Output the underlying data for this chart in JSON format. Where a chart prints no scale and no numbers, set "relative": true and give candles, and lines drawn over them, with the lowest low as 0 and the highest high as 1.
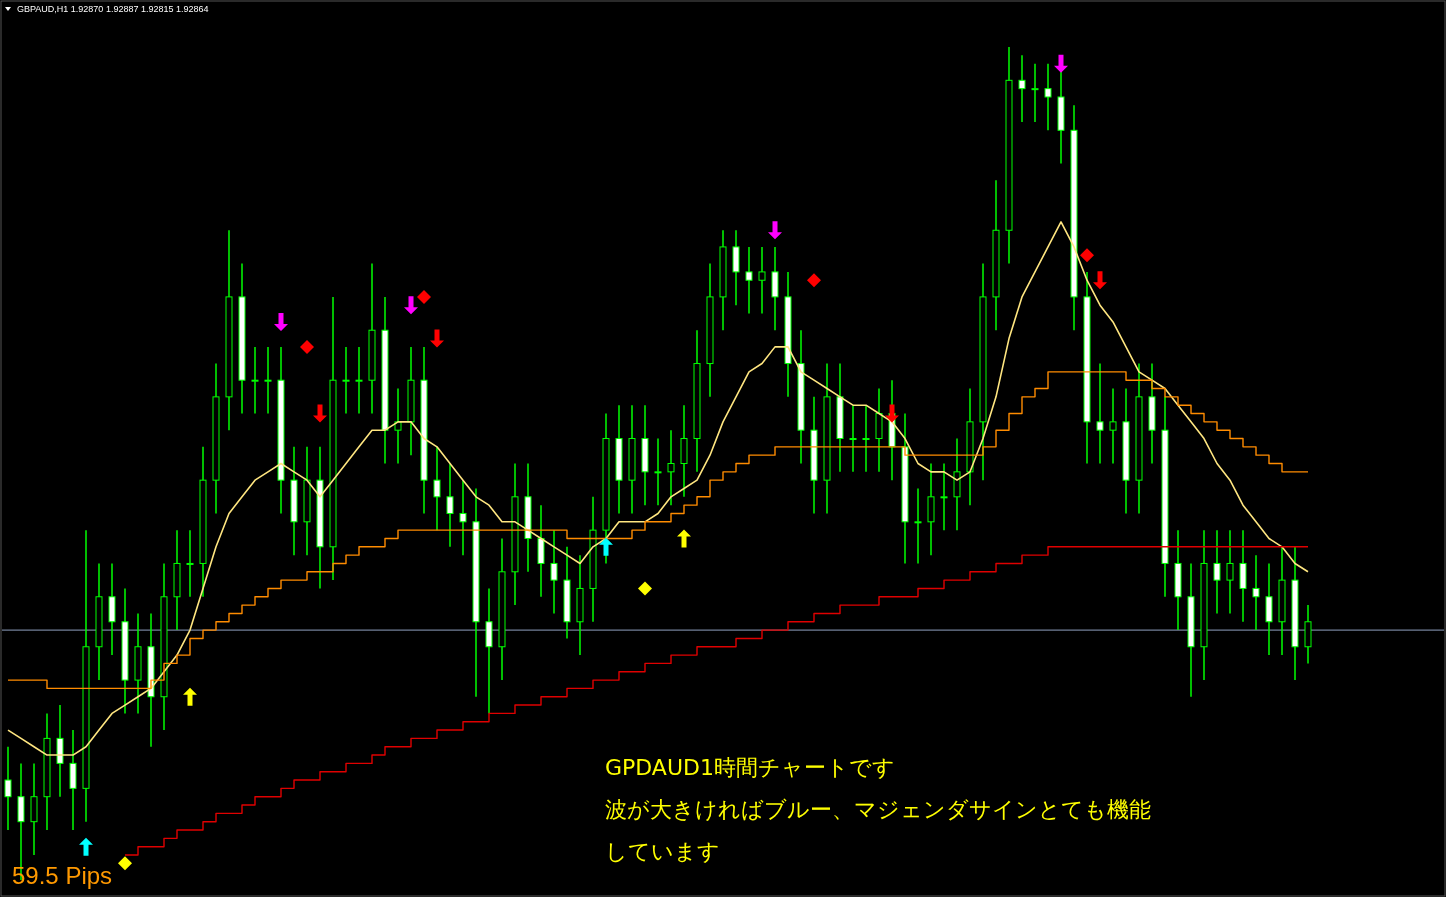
{
  "chart_data": {
    "type": "candlestick",
    "title": "GBPAUD,H1  1.92870 1.92887 1.92815 1.92864",
    "relative": true,
    "categories": [
      null,
      null,
      null,
      null,
      null,
      null,
      null,
      null,
      null,
      null,
      null,
      null,
      null,
      null,
      null,
      null,
      null,
      null,
      null,
      null,
      null,
      null,
      null,
      null,
      null,
      null,
      null,
      null,
      null,
      null,
      null,
      null,
      null,
      null,
      null,
      null,
      null,
      null,
      null,
      null,
      null,
      null,
      null,
      null,
      null,
      null,
      null,
      null,
      null,
      null,
      null,
      null,
      null,
      null,
      null,
      null,
      null,
      null,
      null,
      null,
      null,
      null,
      null,
      null,
      null,
      null,
      null,
      null,
      null,
      null,
      null,
      null,
      null,
      null,
      null,
      null,
      null,
      null,
      null,
      null,
      null,
      null,
      null,
      null,
      null,
      null,
      null,
      null,
      null,
      null,
      null,
      null,
      null,
      null,
      null,
      null,
      null,
      null,
      null,
      null,
      null
    ],
    "color": "#00ff00",
    "ohlc": [
      [
        0.12,
        0.16,
        0.06,
        0.1
      ],
      [
        0.1,
        0.14,
        0.0,
        0.07
      ],
      [
        0.07,
        0.14,
        0.03,
        0.1
      ],
      [
        0.1,
        0.2,
        0.06,
        0.17
      ],
      [
        0.17,
        0.21,
        0.1,
        0.14
      ],
      [
        0.14,
        0.18,
        0.06,
        0.11
      ],
      [
        0.11,
        0.42,
        0.07,
        0.28
      ],
      [
        0.28,
        0.38,
        0.24,
        0.34
      ],
      [
        0.34,
        0.38,
        0.27,
        0.31
      ],
      [
        0.31,
        0.35,
        0.2,
        0.24
      ],
      [
        0.24,
        0.32,
        0.2,
        0.28
      ],
      [
        0.28,
        0.32,
        0.16,
        0.22
      ],
      [
        0.22,
        0.38,
        0.18,
        0.34
      ],
      [
        0.34,
        0.42,
        0.3,
        0.38
      ],
      [
        0.38,
        0.42,
        0.34,
        0.38
      ],
      [
        0.38,
        0.52,
        0.34,
        0.48
      ],
      [
        0.48,
        0.62,
        0.44,
        0.58
      ],
      [
        0.58,
        0.78,
        0.54,
        0.7
      ],
      [
        0.7,
        0.74,
        0.56,
        0.6
      ],
      [
        0.6,
        0.64,
        0.56,
        0.6
      ],
      [
        0.6,
        0.64,
        0.56,
        0.6
      ],
      [
        0.6,
        0.64,
        0.44,
        0.48
      ],
      [
        0.48,
        0.52,
        0.39,
        0.43
      ],
      [
        0.43,
        0.52,
        0.39,
        0.48
      ],
      [
        0.48,
        0.52,
        0.35,
        0.4
      ],
      [
        0.4,
        0.7,
        0.36,
        0.6
      ],
      [
        0.6,
        0.64,
        0.56,
        0.6
      ],
      [
        0.6,
        0.64,
        0.56,
        0.6
      ],
      [
        0.6,
        0.74,
        0.56,
        0.66
      ],
      [
        0.66,
        0.7,
        0.5,
        0.54
      ],
      [
        0.54,
        0.59,
        0.5,
        0.55
      ],
      [
        0.55,
        0.64,
        0.51,
        0.6
      ],
      [
        0.6,
        0.64,
        0.44,
        0.48
      ],
      [
        0.48,
        0.52,
        0.42,
        0.46
      ],
      [
        0.46,
        0.5,
        0.4,
        0.44
      ],
      [
        0.44,
        0.48,
        0.39,
        0.43
      ],
      [
        0.43,
        0.47,
        0.22,
        0.31
      ],
      [
        0.31,
        0.35,
        0.2,
        0.28
      ],
      [
        0.28,
        0.41,
        0.24,
        0.37
      ],
      [
        0.37,
        0.5,
        0.33,
        0.46
      ],
      [
        0.46,
        0.5,
        0.37,
        0.41
      ],
      [
        0.41,
        0.45,
        0.34,
        0.38
      ],
      [
        0.38,
        0.42,
        0.32,
        0.36
      ],
      [
        0.36,
        0.4,
        0.29,
        0.31
      ],
      [
        0.31,
        0.39,
        0.27,
        0.35
      ],
      [
        0.35,
        0.46,
        0.31,
        0.42
      ],
      [
        0.42,
        0.56,
        0.38,
        0.53
      ],
      [
        0.53,
        0.57,
        0.44,
        0.48
      ],
      [
        0.48,
        0.57,
        0.44,
        0.53
      ],
      [
        0.53,
        0.57,
        0.45,
        0.49
      ],
      [
        0.49,
        0.53,
        0.45,
        0.49
      ],
      [
        0.49,
        0.54,
        0.45,
        0.5
      ],
      [
        0.5,
        0.57,
        0.46,
        0.53
      ],
      [
        0.53,
        0.66,
        0.49,
        0.62
      ],
      [
        0.62,
        0.74,
        0.58,
        0.7
      ],
      [
        0.7,
        0.78,
        0.66,
        0.76
      ],
      [
        0.76,
        0.78,
        0.69,
        0.73
      ],
      [
        0.73,
        0.76,
        0.68,
        0.72
      ],
      [
        0.72,
        0.76,
        0.68,
        0.73
      ],
      [
        0.73,
        0.76,
        0.66,
        0.7
      ],
      [
        0.7,
        0.73,
        0.58,
        0.62
      ],
      [
        0.62,
        0.66,
        0.5,
        0.54
      ],
      [
        0.54,
        0.58,
        0.44,
        0.48
      ],
      [
        0.48,
        0.62,
        0.44,
        0.58
      ],
      [
        0.58,
        0.62,
        0.49,
        0.53
      ],
      [
        0.53,
        0.57,
        0.49,
        0.53
      ],
      [
        0.53,
        0.57,
        0.49,
        0.53
      ],
      [
        0.53,
        0.59,
        0.49,
        0.56
      ],
      [
        0.56,
        0.6,
        0.48,
        0.52
      ],
      [
        0.52,
        0.56,
        0.38,
        0.43
      ],
      [
        0.43,
        0.47,
        0.38,
        0.43
      ],
      [
        0.43,
        0.5,
        0.39,
        0.46
      ],
      [
        0.46,
        0.5,
        0.42,
        0.46
      ],
      [
        0.46,
        0.53,
        0.42,
        0.49
      ],
      [
        0.49,
        0.59,
        0.45,
        0.55
      ],
      [
        0.55,
        0.74,
        0.48,
        0.7
      ],
      [
        0.7,
        0.84,
        0.66,
        0.78
      ],
      [
        0.78,
        1.0,
        0.74,
        0.96
      ],
      [
        0.96,
        0.99,
        0.91,
        0.95
      ],
      [
        0.95,
        0.98,
        0.91,
        0.95
      ],
      [
        0.95,
        0.98,
        0.9,
        0.94
      ],
      [
        0.94,
        0.97,
        0.86,
        0.9
      ],
      [
        0.9,
        0.93,
        0.66,
        0.7
      ],
      [
        0.7,
        0.73,
        0.5,
        0.55
      ],
      [
        0.55,
        0.62,
        0.5,
        0.54
      ],
      [
        0.54,
        0.59,
        0.5,
        0.55
      ],
      [
        0.55,
        0.59,
        0.44,
        0.48
      ],
      [
        0.48,
        0.62,
        0.44,
        0.58
      ],
      [
        0.58,
        0.62,
        0.5,
        0.54
      ],
      [
        0.54,
        0.58,
        0.34,
        0.38
      ],
      [
        0.38,
        0.42,
        0.3,
        0.34
      ],
      [
        0.34,
        0.38,
        0.22,
        0.28
      ],
      [
        0.28,
        0.42,
        0.24,
        0.38
      ],
      [
        0.38,
        0.42,
        0.32,
        0.36
      ],
      [
        0.36,
        0.42,
        0.32,
        0.38
      ],
      [
        0.38,
        0.42,
        0.31,
        0.35
      ],
      [
        0.35,
        0.39,
        0.3,
        0.34
      ],
      [
        0.34,
        0.38,
        0.27,
        0.31
      ],
      [
        0.31,
        0.4,
        0.27,
        0.36
      ],
      [
        0.36,
        0.4,
        0.24,
        0.28
      ],
      [
        0.28,
        0.33,
        0.26,
        0.31
      ]
    ],
    "series": [
      {
        "type": "line",
        "color": "#ffe680",
        "values": [
          0.18,
          0.17,
          0.16,
          0.15,
          0.15,
          0.15,
          0.16,
          0.18,
          0.2,
          0.21,
          0.22,
          0.23,
          0.25,
          0.27,
          0.3,
          0.35,
          0.4,
          0.44,
          0.46,
          0.48,
          0.49,
          0.5,
          0.49,
          0.48,
          0.46,
          0.48,
          0.5,
          0.52,
          0.54,
          0.54,
          0.55,
          0.55,
          0.53,
          0.52,
          0.5,
          0.48,
          0.46,
          0.45,
          0.43,
          0.43,
          0.42,
          0.41,
          0.4,
          0.39,
          0.38,
          0.4,
          0.41,
          0.43,
          0.43,
          0.43,
          0.44,
          0.46,
          0.47,
          0.48,
          0.51,
          0.55,
          0.58,
          0.61,
          0.62,
          0.64,
          0.64,
          0.61,
          0.6,
          0.59,
          0.58,
          0.57,
          0.57,
          0.56,
          0.55,
          0.53,
          0.5,
          0.49,
          0.49,
          0.48,
          0.49,
          0.53,
          0.58,
          0.65,
          0.7,
          0.73,
          0.76,
          0.79,
          0.76,
          0.72,
          0.69,
          0.67,
          0.64,
          0.61,
          0.6,
          0.59,
          0.57,
          0.55,
          0.53,
          0.5,
          0.48,
          0.45,
          0.43,
          0.41,
          0.4,
          0.38,
          0.37
        ]
      },
      {
        "type": "step",
        "color": "#ff8c00",
        "values": [
          0.24,
          0.24,
          0.24,
          0.23,
          0.23,
          0.23,
          0.23,
          0.23,
          0.23,
          0.23,
          0.23,
          0.24,
          0.26,
          0.27,
          0.29,
          0.3,
          0.31,
          0.32,
          0.33,
          0.34,
          0.35,
          0.36,
          0.36,
          0.37,
          0.37,
          0.38,
          0.39,
          0.4,
          0.4,
          0.41,
          0.42,
          0.42,
          0.42,
          0.42,
          0.42,
          0.42,
          0.42,
          0.42,
          0.42,
          0.42,
          0.42,
          0.42,
          0.42,
          0.41,
          0.41,
          0.41,
          0.41,
          0.41,
          0.42,
          0.43,
          0.43,
          0.44,
          0.45,
          0.46,
          0.48,
          0.49,
          0.5,
          0.51,
          0.51,
          0.52,
          0.52,
          0.52,
          0.52,
          0.52,
          0.52,
          0.52,
          0.52,
          0.52,
          0.52,
          0.51,
          0.51,
          0.51,
          0.51,
          0.51,
          0.51,
          0.52,
          0.54,
          0.56,
          0.58,
          0.59,
          0.61,
          0.61,
          0.61,
          0.61,
          0.61,
          0.61,
          0.6,
          0.6,
          0.59,
          0.58,
          0.57,
          0.56,
          0.55,
          0.54,
          0.53,
          0.52,
          0.51,
          0.5,
          0.49,
          0.49,
          0.49
        ]
      },
      {
        "type": "step",
        "color": "#e00000",
        "values": [
          null,
          null,
          null,
          null,
          null,
          null,
          null,
          null,
          null,
          0.03,
          0.04,
          0.04,
          0.05,
          0.06,
          0.06,
          0.07,
          0.08,
          0.08,
          0.09,
          0.1,
          0.1,
          0.11,
          0.12,
          0.12,
          0.13,
          0.13,
          0.14,
          0.14,
          0.15,
          0.16,
          0.16,
          0.17,
          0.17,
          0.18,
          0.18,
          0.19,
          0.19,
          0.2,
          0.2,
          0.21,
          0.21,
          0.22,
          0.22,
          0.23,
          0.23,
          0.24,
          0.24,
          0.25,
          0.25,
          0.26,
          0.26,
          0.27,
          0.27,
          0.28,
          0.28,
          0.28,
          0.29,
          0.29,
          0.3,
          0.3,
          0.31,
          0.31,
          0.32,
          0.32,
          0.33,
          0.33,
          0.33,
          0.34,
          0.34,
          0.34,
          0.35,
          0.35,
          0.36,
          0.36,
          0.37,
          0.37,
          0.38,
          0.38,
          0.39,
          0.39,
          0.4,
          0.4,
          0.4,
          0.4,
          0.4,
          0.4,
          0.4,
          0.4,
          0.4,
          0.4,
          0.4,
          0.4,
          0.4,
          0.4,
          0.4,
          0.4,
          0.4,
          0.4,
          0.4,
          0.4,
          0.4
        ]
      },
      {
        "type": "scatter",
        "marker": "triangle",
        "color": "#00ffff",
        "values": [
          null,
          null,
          null,
          null,
          null,
          null,
          0.04,
          null,
          null,
          null,
          null,
          null,
          null,
          null,
          null,
          null,
          null,
          null,
          null,
          null,
          null,
          null,
          null,
          null,
          null,
          null,
          null,
          null,
          null,
          null,
          null,
          null,
          null,
          null,
          null,
          null,
          null,
          null,
          null,
          null,
          null,
          null,
          null,
          null,
          null,
          null,
          0.4,
          null,
          null,
          null,
          null,
          null,
          null,
          null,
          null,
          null,
          null,
          null,
          null,
          null,
          null,
          null,
          null,
          null,
          null,
          null,
          null,
          null,
          null,
          null,
          null,
          null,
          null,
          null,
          null,
          null,
          null,
          null,
          null,
          null,
          null,
          null,
          null,
          null,
          null,
          null,
          null,
          null,
          null,
          null,
          null,
          null,
          null,
          null,
          null,
          null,
          null,
          null,
          null,
          null,
          null
        ]
      },
      {
        "type": "scatter",
        "marker": "triangle",
        "color": "#ffff00",
        "values": [
          null,
          null,
          null,
          null,
          null,
          null,
          null,
          null,
          null,
          null,
          null,
          null,
          null,
          null,
          0.22,
          null,
          null,
          null,
          null,
          null,
          null,
          null,
          null,
          null,
          null,
          null,
          null,
          null,
          null,
          null,
          null,
          null,
          null,
          null,
          null,
          null,
          null,
          null,
          null,
          null,
          null,
          null,
          null,
          null,
          null,
          null,
          null,
          null,
          null,
          null,
          null,
          null,
          0.41,
          null,
          null,
          null,
          null,
          null,
          null,
          null,
          null,
          null,
          null,
          null,
          null,
          null,
          null,
          null,
          null,
          null,
          null,
          null,
          null,
          null,
          null,
          null,
          null,
          null,
          null,
          null,
          null,
          null,
          null,
          null,
          null,
          null,
          null,
          null,
          null,
          null,
          null,
          null,
          null,
          null,
          null,
          null,
          null,
          null,
          null,
          null,
          null
        ]
      },
      {
        "type": "scatter",
        "marker": "triangle",
        "color": "#ff00ff",
        "values": [
          null,
          null,
          null,
          null,
          null,
          null,
          null,
          null,
          null,
          null,
          null,
          null,
          null,
          null,
          null,
          null,
          null,
          null,
          null,
          null,
          null,
          0.67,
          null,
          null,
          null,
          null,
          null,
          null,
          null,
          null,
          null,
          0.69,
          null,
          null,
          null,
          null,
          null,
          null,
          null,
          null,
          null,
          null,
          null,
          null,
          null,
          null,
          null,
          null,
          null,
          null,
          null,
          null,
          null,
          null,
          null,
          null,
          null,
          null,
          null,
          0.78,
          null,
          null,
          null,
          null,
          null,
          null,
          null,
          null,
          null,
          null,
          null,
          null,
          null,
          null,
          null,
          null,
          null,
          null,
          null,
          null,
          null,
          0.98,
          null,
          null,
          null,
          null,
          null,
          null,
          null,
          null,
          null,
          null,
          null,
          null,
          null,
          null,
          null,
          null,
          null,
          null,
          null
        ]
      },
      {
        "type": "scatter",
        "marker": "triangle",
        "color": "#ff0000",
        "values": [
          null,
          null,
          null,
          null,
          null,
          null,
          null,
          null,
          null,
          null,
          null,
          null,
          null,
          null,
          null,
          null,
          null,
          null,
          null,
          null,
          null,
          null,
          null,
          null,
          0.56,
          null,
          null,
          null,
          null,
          null,
          null,
          null,
          null,
          0.65,
          null,
          null,
          null,
          null,
          null,
          null,
          null,
          null,
          null,
          null,
          null,
          null,
          null,
          null,
          null,
          null,
          null,
          null,
          null,
          null,
          null,
          null,
          null,
          null,
          null,
          null,
          null,
          null,
          null,
          null,
          null,
          null,
          null,
          null,
          0.56,
          null,
          null,
          null,
          null,
          null,
          null,
          null,
          null,
          null,
          null,
          null,
          null,
          null,
          null,
          null,
          0.72,
          null,
          null,
          null,
          null,
          null,
          null,
          null,
          null,
          null,
          null,
          null,
          null,
          null,
          null,
          null,
          null
        ]
      },
      {
        "type": "scatter",
        "marker": "diamond",
        "color": "#ff0000",
        "values": [
          null,
          null,
          null,
          null,
          null,
          null,
          null,
          null,
          null,
          null,
          null,
          null,
          null,
          null,
          null,
          null,
          null,
          null,
          null,
          null,
          null,
          null,
          null,
          0.64,
          null,
          null,
          null,
          null,
          null,
          null,
          null,
          null,
          0.7,
          null,
          null,
          null,
          null,
          null,
          null,
          null,
          null,
          null,
          null,
          null,
          null,
          null,
          null,
          null,
          null,
          null,
          null,
          null,
          null,
          null,
          null,
          null,
          null,
          null,
          null,
          null,
          null,
          null,
          0.72,
          null,
          null,
          null,
          null,
          null,
          null,
          null,
          null,
          null,
          null,
          null,
          null,
          null,
          null,
          null,
          null,
          null,
          null,
          null,
          null,
          0.75,
          null,
          null,
          null,
          null,
          null,
          null,
          null,
          null,
          null,
          null,
          null,
          null,
          null,
          null,
          null,
          null,
          null
        ]
      },
      {
        "type": "scatter",
        "marker": "diamond",
        "color": "#ffff00",
        "values": [
          null,
          null,
          null,
          null,
          null,
          null,
          null,
          null,
          null,
          0.02,
          null,
          null,
          null,
          null,
          null,
          null,
          null,
          null,
          null,
          null,
          null,
          null,
          null,
          null,
          null,
          null,
          null,
          null,
          null,
          null,
          null,
          null,
          null,
          null,
          null,
          null,
          null,
          null,
          null,
          null,
          null,
          null,
          null,
          null,
          null,
          null,
          null,
          null,
          null,
          0.35,
          null,
          null,
          null,
          null,
          null,
          null,
          null,
          null,
          null,
          null,
          null,
          null,
          null,
          null,
          null,
          null,
          null,
          null,
          null,
          null,
          null,
          null,
          null,
          null,
          null,
          null,
          null,
          null,
          null,
          null,
          null,
          null,
          null,
          null,
          null,
          null,
          null,
          null,
          null,
          null,
          null,
          null,
          null,
          null,
          null,
          null,
          null,
          null,
          null,
          null,
          null
        ]
      }
    ],
    "ref_lines": [
      {
        "axis": "y",
        "value": 0.3,
        "color": "#8fa0c0"
      }
    ],
    "annotations": [
      "GPDAUD1時間チャートです",
      "波が大きければブルー、マジェンダサインとても機能",
      "しています",
      "59.5 Pips"
    ]
  }
}
